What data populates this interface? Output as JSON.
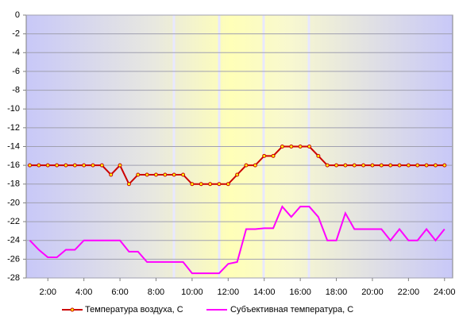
{
  "chart_data": {
    "type": "line",
    "x": [
      1,
      1.5,
      2,
      2.5,
      3,
      3.5,
      4,
      4.5,
      5,
      5.5,
      6,
      6.5,
      7,
      7.5,
      8,
      8.5,
      9,
      9.5,
      10,
      10.5,
      11,
      11.5,
      12,
      12.5,
      13,
      13.5,
      14,
      14.5,
      15,
      15.5,
      16,
      16.5,
      17,
      17.5,
      18,
      18.5,
      19,
      19.5,
      20,
      20.5,
      21,
      21.5,
      22,
      22.5,
      23,
      23.5,
      24
    ],
    "series": [
      {
        "name": "Температура воздуха, С",
        "color": "#cc0000",
        "markers": true,
        "values": [
          -16,
          -16,
          -16,
          -16,
          -16,
          -16,
          -16,
          -16,
          -16,
          -17,
          -16,
          -18,
          -17,
          -17,
          -17,
          -17,
          -17,
          -17,
          -18,
          -18,
          -18,
          -18,
          -18,
          -17,
          -16,
          -16,
          -15,
          -15,
          -14,
          -14,
          -14,
          -14,
          -15,
          -16,
          -16,
          -16,
          -16,
          -16,
          -16,
          -16,
          -16,
          -16,
          -16,
          -16,
          -16,
          -16,
          -16
        ]
      },
      {
        "name": "Субъективная температура, С",
        "color": "#ff00ff",
        "markers": false,
        "values": [
          -24,
          -25,
          -25.8,
          -25.8,
          -25,
          -25,
          -24,
          -24,
          -24,
          -24,
          -24,
          -25.2,
          -25.2,
          -26.3,
          -26.3,
          -26.3,
          -26.3,
          -26.3,
          -27.5,
          -27.5,
          -27.5,
          -27.5,
          -26.5,
          -26.3,
          -22.8,
          -22.8,
          -22.7,
          -22.7,
          -20.4,
          -21.5,
          -20.4,
          -20.4,
          -21.5,
          -24,
          -24,
          -21.1,
          -22.8,
          -22.8,
          -22.8,
          -22.8,
          -24,
          -22.8,
          -24,
          -24,
          -22.8,
          -24,
          -22.8
        ]
      }
    ],
    "xlim": [
      0.8,
      24.45
    ],
    "xticks": [
      {
        "value": 2,
        "label": "2:00"
      },
      {
        "value": 4,
        "label": "4:00"
      },
      {
        "value": 6,
        "label": "6:00"
      },
      {
        "value": 8,
        "label": "8:00"
      },
      {
        "value": 10,
        "label": "10:00"
      },
      {
        "value": 12,
        "label": "12:00"
      },
      {
        "value": 14,
        "label": "14:00"
      },
      {
        "value": 16,
        "label": "16:00"
      },
      {
        "value": 18,
        "label": "18:00"
      },
      {
        "value": 20,
        "label": "20:00"
      },
      {
        "value": 22,
        "label": "22:00"
      },
      {
        "value": 24,
        "label": "24:00"
      }
    ],
    "ylim": [
      -28,
      0
    ],
    "yticks": [
      0,
      -2,
      -4,
      -6,
      -8,
      -10,
      -12,
      -14,
      -16,
      -18,
      -20,
      -22,
      -24,
      -26,
      -28
    ],
    "grid": true
  }
}
